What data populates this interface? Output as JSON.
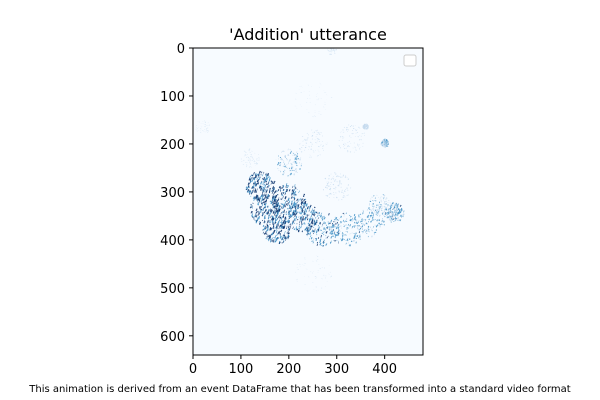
{
  "chart_data": {
    "type": "heatmap",
    "title": "'Addition' utterance",
    "xlabel": "",
    "ylabel": "",
    "xlim": [
      0,
      480
    ],
    "ylim": [
      640,
      0
    ],
    "x_ticks": [
      0,
      100,
      200,
      300,
      400
    ],
    "y_ticks": [
      0,
      100,
      200,
      300,
      400,
      500,
      600
    ],
    "x_tick_labels": [
      "0",
      "100",
      "200",
      "300",
      "400"
    ],
    "y_tick_labels": [
      "0",
      "100",
      "200",
      "300",
      "400",
      "500",
      "600"
    ],
    "colormap": "Blues",
    "colors": {
      "background": "#f7fbff",
      "low": "#c6dbef",
      "mid": "#4292c6",
      "high": "#08306b"
    },
    "legend": {
      "placement": "top-right",
      "entries": []
    },
    "grid": false,
    "events": [
      {
        "x": 140,
        "y": 290,
        "intensity": 1.0,
        "spread": 30
      },
      {
        "x": 150,
        "y": 340,
        "intensity": 1.0,
        "spread": 32
      },
      {
        "x": 175,
        "y": 380,
        "intensity": 1.0,
        "spread": 30
      },
      {
        "x": 200,
        "y": 320,
        "intensity": 0.95,
        "spread": 35
      },
      {
        "x": 230,
        "y": 355,
        "intensity": 0.9,
        "spread": 32
      },
      {
        "x": 270,
        "y": 380,
        "intensity": 0.8,
        "spread": 35
      },
      {
        "x": 320,
        "y": 380,
        "intensity": 0.7,
        "spread": 35
      },
      {
        "x": 370,
        "y": 365,
        "intensity": 0.6,
        "spread": 30
      },
      {
        "x": 420,
        "y": 345,
        "intensity": 0.7,
        "spread": 20
      },
      {
        "x": 390,
        "y": 330,
        "intensity": 0.5,
        "spread": 25
      },
      {
        "x": 300,
        "y": 290,
        "intensity": 0.4,
        "spread": 30
      },
      {
        "x": 200,
        "y": 240,
        "intensity": 0.55,
        "spread": 28
      },
      {
        "x": 250,
        "y": 200,
        "intensity": 0.3,
        "spread": 30
      },
      {
        "x": 330,
        "y": 190,
        "intensity": 0.3,
        "spread": 30
      },
      {
        "x": 360,
        "y": 165,
        "intensity": 0.4,
        "spread": 6
      },
      {
        "x": 400,
        "y": 200,
        "intensity": 0.5,
        "spread": 8
      },
      {
        "x": 250,
        "y": 470,
        "intensity": 0.15,
        "spread": 40
      },
      {
        "x": 120,
        "y": 230,
        "intensity": 0.2,
        "spread": 20
      },
      {
        "x": 20,
        "y": 165,
        "intensity": 0.12,
        "spread": 15
      },
      {
        "x": 290,
        "y": 5,
        "intensity": 0.15,
        "spread": 10
      },
      {
        "x": 250,
        "y": 110,
        "intensity": 0.12,
        "spread": 40
      }
    ]
  },
  "caption": "This animation is derived from an event DataFrame that has been transformed into a standard video format"
}
